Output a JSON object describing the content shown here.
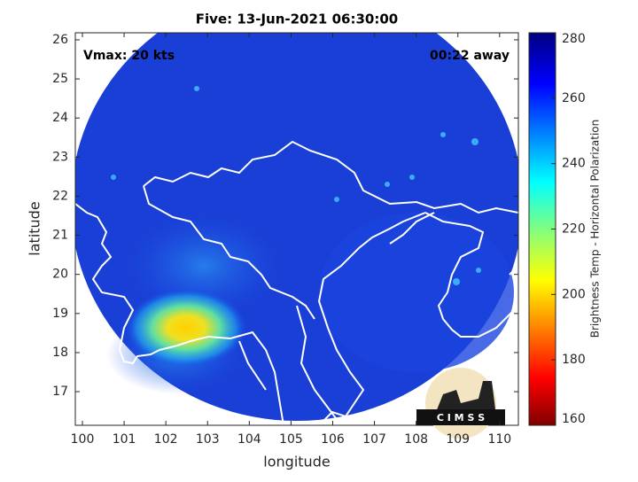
{
  "map": {
    "title": "Five: 13-Jun-2021 06:30:00",
    "vmax_label": "Vmax: 20 kts",
    "time_label": "00:22 away",
    "xlabel": "longitude",
    "ylabel": "latitude",
    "xlim": [
      99.83,
      110.45
    ],
    "ylim": [
      16.14,
      26.18
    ],
    "xticks": [
      100,
      101,
      102,
      103,
      104,
      105,
      106,
      107,
      108,
      109,
      110
    ],
    "yticks": [
      17,
      18,
      19,
      20,
      21,
      22,
      23,
      24,
      25,
      26
    ],
    "colorbar": {
      "label": "Brightness Temp - Horizontal Polarization",
      "lim": [
        160,
        280
      ],
      "ticks": [
        160,
        180,
        200,
        220,
        240,
        260,
        280
      ]
    },
    "logo": "C I M S S"
  }
}
